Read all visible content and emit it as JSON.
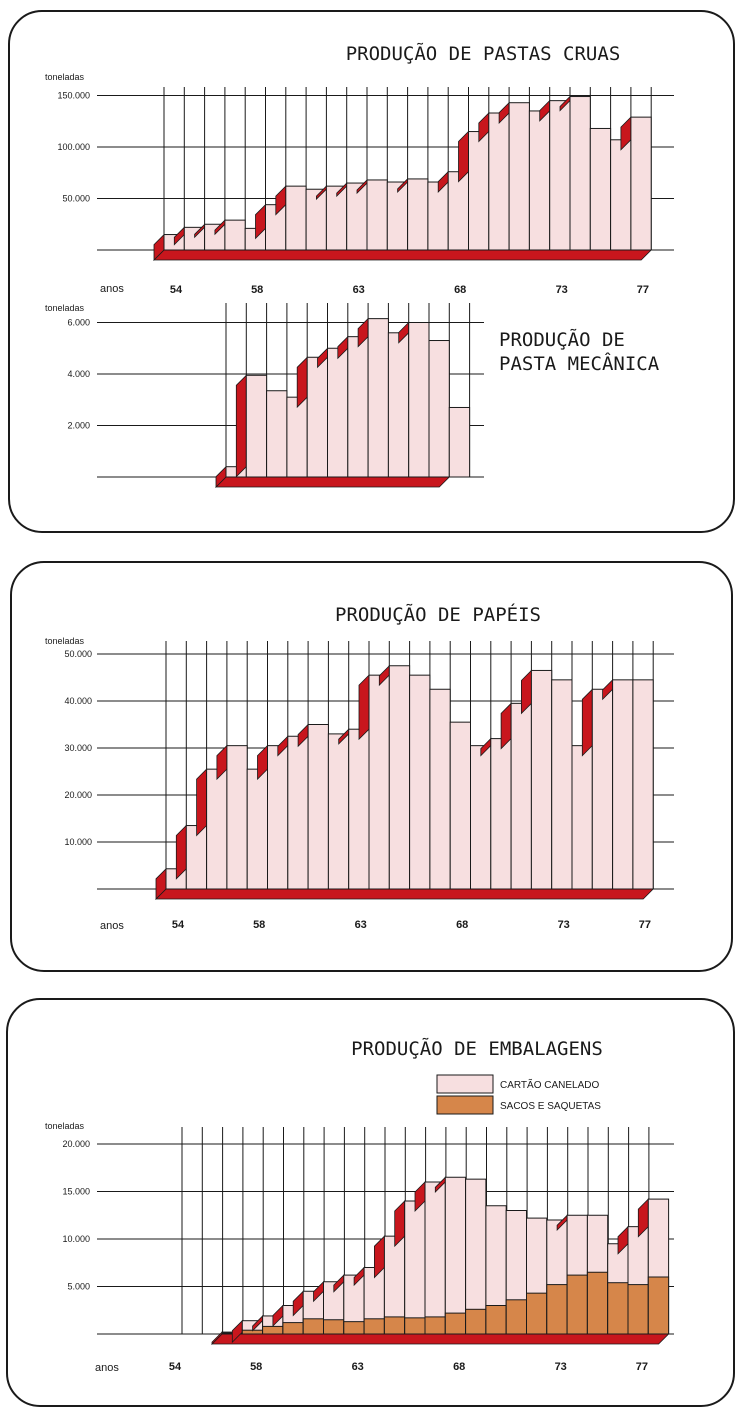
{
  "colors": {
    "pink": "#f7dfe0",
    "red": "#c8161d",
    "orange": "#d6864a",
    "grid": "#1a1a1a"
  },
  "chart_data": [
    {
      "type": "bar",
      "title": "PRODUÇÃO DE PASTAS CRUAS",
      "ylabel": "toneladas",
      "xlabel": "anos",
      "x": [
        54,
        55,
        56,
        57,
        58,
        59,
        60,
        61,
        62,
        63,
        64,
        65,
        66,
        67,
        68,
        69,
        70,
        71,
        72,
        73,
        74,
        75,
        76,
        77
      ],
      "values": [
        15000,
        22000,
        25000,
        29000,
        21000,
        44000,
        62000,
        59000,
        62000,
        65000,
        68000,
        66000,
        69000,
        66000,
        76000,
        115000,
        133000,
        143000,
        135000,
        145000,
        149000,
        118000,
        107000,
        129000
      ],
      "yticks": [
        "50.000",
        "100.000",
        "150.000"
      ],
      "xticks": [
        "54",
        "58",
        "63",
        "68",
        "73",
        "77"
      ],
      "ylim": [
        0,
        160000
      ]
    },
    {
      "type": "bar",
      "title": "PRODUÇÃO DE PASTA MECÂNICA",
      "title_lines": [
        "PRODUÇÃO DE",
        "PASTA MECÂNICA"
      ],
      "ylabel": "toneladas",
      "x": [
        58,
        59,
        60,
        61,
        62,
        63,
        64,
        65,
        66,
        67,
        68
      ],
      "values": [
        400,
        3950,
        3350,
        3100,
        4650,
        5000,
        5450,
        6150,
        5600,
        6000,
        5300
      ],
      "last_value": 2700,
      "yticks": [
        "2.000",
        "4.000",
        "6.000"
      ],
      "ylim": [
        0,
        6500
      ]
    },
    {
      "type": "bar",
      "title": "PRODUÇÃO DE PAPÉIS",
      "ylabel": "toneladas",
      "xlabel": "anos",
      "x": [
        54,
        55,
        56,
        57,
        58,
        59,
        60,
        61,
        62,
        63,
        64,
        65,
        66,
        67,
        68,
        69,
        70,
        71,
        72,
        73,
        74,
        75,
        76,
        77
      ],
      "values": [
        4300,
        13500,
        25500,
        30500,
        25500,
        30500,
        32500,
        35000,
        33000,
        34000,
        45500,
        47500,
        45500,
        42500,
        35500,
        30500,
        32000,
        39500,
        46500,
        44500,
        30500,
        42500,
        44500,
        44500
      ],
      "yticks": [
        "10.000",
        "20.000",
        "30.000",
        "40.000",
        "50.000"
      ],
      "xticks": [
        "54",
        "58",
        "63",
        "68",
        "73",
        "77"
      ],
      "ylim": [
        0,
        52000
      ]
    },
    {
      "type": "bar",
      "title": "PRODUÇÃO DE EMBALAGENS",
      "ylabel": "toneladas",
      "xlabel": "anos",
      "x": [
        56,
        57,
        58,
        59,
        60,
        61,
        62,
        63,
        64,
        65,
        66,
        67,
        68,
        69,
        70,
        71,
        72,
        73,
        74,
        75,
        76,
        77
      ],
      "series": [
        {
          "name": "CARTÃO CANELADO",
          "values": [
            200,
            1400,
            1900,
            3000,
            4500,
            5500,
            6200,
            7000,
            10300,
            14000,
            16000,
            16500,
            16300,
            13500,
            13000,
            12200,
            12000,
            12500,
            12500,
            9500,
            11300,
            14200
          ]
        },
        {
          "name": "SACOS E SAQUETAS",
          "values": [
            100,
            400,
            800,
            1200,
            1600,
            1500,
            1300,
            1600,
            1800,
            1700,
            1800,
            2200,
            2600,
            3000,
            3600,
            4300,
            5200,
            6200,
            6500,
            5400,
            5200,
            6000
          ]
        }
      ],
      "yticks": [
        "5.000",
        "10.000",
        "15.000",
        "20.000"
      ],
      "xticks": [
        "54",
        "58",
        "63",
        "68",
        "73",
        "77"
      ],
      "ylim": [
        0,
        21000
      ]
    }
  ]
}
